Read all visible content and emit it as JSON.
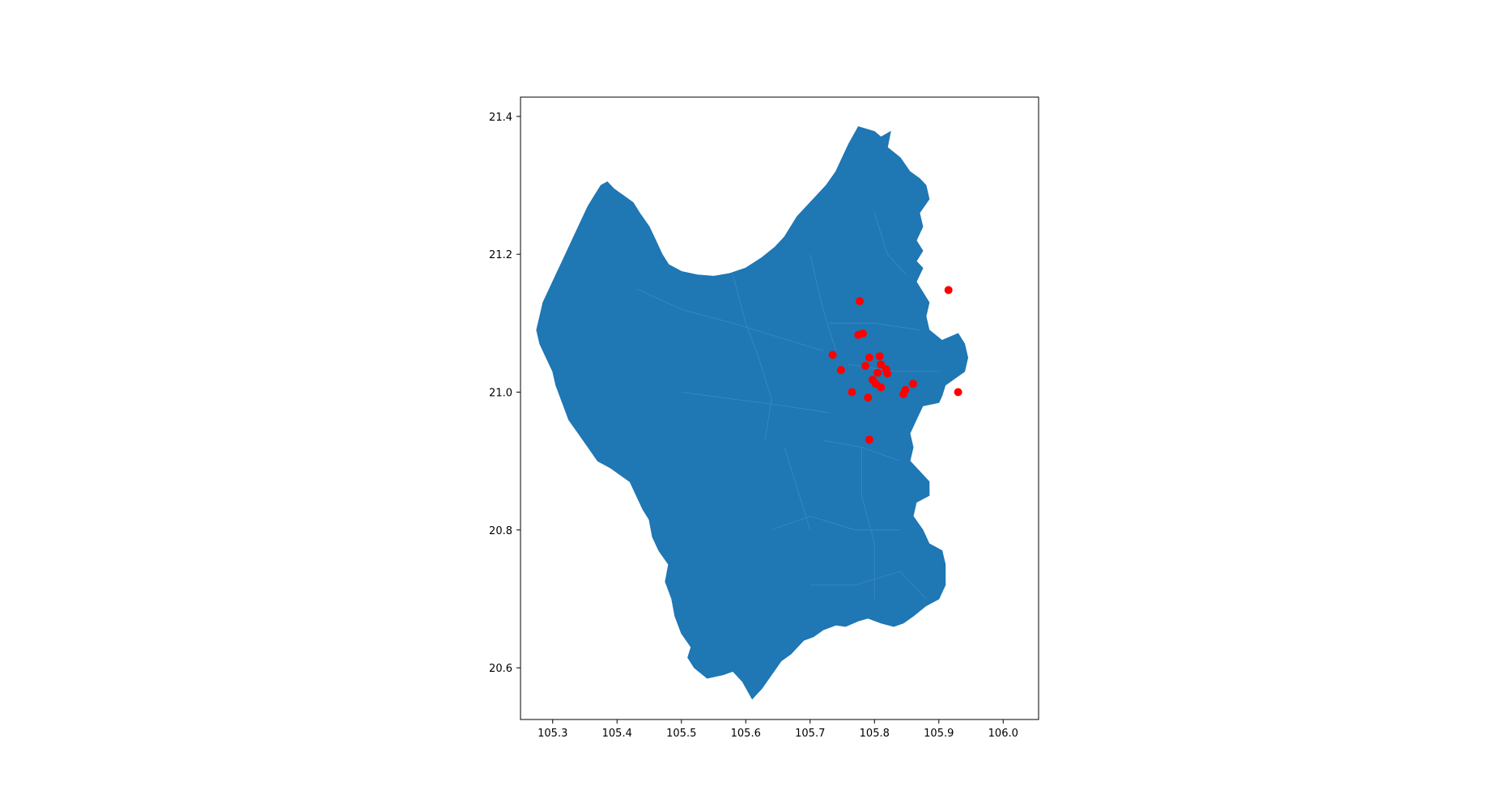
{
  "figure": {
    "title": "",
    "background": "#ffffff"
  },
  "chart_data": {
    "type": "scatter",
    "title": "",
    "xlabel": "",
    "ylabel": "",
    "xlim": [
      105.25,
      106.055
    ],
    "ylim": [
      20.525,
      21.428
    ],
    "grid": false,
    "legend": "none",
    "x_ticks": [
      105.3,
      105.4,
      105.5,
      105.6,
      105.7,
      105.8,
      105.9,
      106.0
    ],
    "x_tick_labels": [
      "105.3",
      "105.4",
      "105.5",
      "105.6",
      "105.7",
      "105.8",
      "105.9",
      "106.0"
    ],
    "y_ticks": [
      20.6,
      20.8,
      21.0,
      21.2,
      21.4
    ],
    "y_tick_labels": [
      "20.6",
      "20.8",
      "21.0",
      "21.2",
      "21.4"
    ],
    "region": {
      "fill_color": "#1f77b4",
      "boundary_color": "#3b8bc2",
      "outline": [
        [
          105.775,
          21.385
        ],
        [
          105.8,
          21.378
        ],
        [
          105.81,
          21.37
        ],
        [
          105.825,
          21.378
        ],
        [
          105.82,
          21.355
        ],
        [
          105.84,
          21.34
        ],
        [
          105.855,
          21.32
        ],
        [
          105.87,
          21.31
        ],
        [
          105.88,
          21.3
        ],
        [
          105.885,
          21.28
        ],
        [
          105.87,
          21.26
        ],
        [
          105.875,
          21.24
        ],
        [
          105.865,
          21.22
        ],
        [
          105.875,
          21.205
        ],
        [
          105.865,
          21.19
        ],
        [
          105.875,
          21.18
        ],
        [
          105.865,
          21.16
        ],
        [
          105.875,
          21.145
        ],
        [
          105.885,
          21.13
        ],
        [
          105.88,
          21.11
        ],
        [
          105.885,
          21.09
        ],
        [
          105.905,
          21.075
        ],
        [
          105.93,
          21.085
        ],
        [
          105.94,
          21.07
        ],
        [
          105.945,
          21.05
        ],
        [
          105.94,
          21.03
        ],
        [
          105.925,
          21.02
        ],
        [
          105.91,
          21.01
        ],
        [
          105.905,
          20.995
        ],
        [
          105.9,
          20.985
        ],
        [
          105.875,
          20.98
        ],
        [
          105.865,
          20.96
        ],
        [
          105.855,
          20.94
        ],
        [
          105.86,
          20.92
        ],
        [
          105.855,
          20.9
        ],
        [
          105.87,
          20.885
        ],
        [
          105.885,
          20.87
        ],
        [
          105.885,
          20.85
        ],
        [
          105.865,
          20.84
        ],
        [
          105.86,
          20.82
        ],
        [
          105.875,
          20.8
        ],
        [
          105.885,
          20.78
        ],
        [
          105.905,
          20.77
        ],
        [
          105.91,
          20.75
        ],
        [
          105.91,
          20.72
        ],
        [
          105.9,
          20.7
        ],
        [
          105.88,
          20.69
        ],
        [
          105.86,
          20.675
        ],
        [
          105.845,
          20.665
        ],
        [
          105.83,
          20.66
        ],
        [
          105.81,
          20.665
        ],
        [
          105.79,
          20.672
        ],
        [
          105.775,
          20.668
        ],
        [
          105.755,
          20.66
        ],
        [
          105.74,
          20.662
        ],
        [
          105.72,
          20.655
        ],
        [
          105.705,
          20.645
        ],
        [
          105.69,
          20.64
        ],
        [
          105.67,
          20.62
        ],
        [
          105.655,
          20.61
        ],
        [
          105.64,
          20.59
        ],
        [
          105.625,
          20.57
        ],
        [
          105.61,
          20.555
        ],
        [
          105.595,
          20.58
        ],
        [
          105.58,
          20.595
        ],
        [
          105.565,
          20.59
        ],
        [
          105.54,
          20.585
        ],
        [
          105.52,
          20.6
        ],
        [
          105.51,
          20.615
        ],
        [
          105.515,
          20.63
        ],
        [
          105.5,
          20.65
        ],
        [
          105.49,
          20.675
        ],
        [
          105.485,
          20.7
        ],
        [
          105.475,
          20.725
        ],
        [
          105.48,
          20.75
        ],
        [
          105.465,
          20.77
        ],
        [
          105.455,
          20.79
        ],
        [
          105.45,
          20.815
        ],
        [
          105.44,
          20.83
        ],
        [
          105.43,
          20.85
        ],
        [
          105.42,
          20.87
        ],
        [
          105.405,
          20.88
        ],
        [
          105.39,
          20.89
        ],
        [
          105.37,
          20.9
        ],
        [
          105.355,
          20.92
        ],
        [
          105.34,
          20.94
        ],
        [
          105.325,
          20.96
        ],
        [
          105.315,
          20.985
        ],
        [
          105.305,
          21.01
        ],
        [
          105.3,
          21.03
        ],
        [
          105.29,
          21.05
        ],
        [
          105.28,
          21.07
        ],
        [
          105.275,
          21.09
        ],
        [
          105.28,
          21.11
        ],
        [
          105.285,
          21.13
        ],
        [
          105.295,
          21.15
        ],
        [
          105.305,
          21.17
        ],
        [
          105.315,
          21.19
        ],
        [
          105.325,
          21.21
        ],
        [
          105.335,
          21.23
        ],
        [
          105.345,
          21.25
        ],
        [
          105.355,
          21.27
        ],
        [
          105.365,
          21.285
        ],
        [
          105.375,
          21.3
        ],
        [
          105.385,
          21.305
        ],
        [
          105.395,
          21.295
        ],
        [
          105.41,
          21.285
        ],
        [
          105.425,
          21.275
        ],
        [
          105.435,
          21.26
        ],
        [
          105.45,
          21.24
        ],
        [
          105.46,
          21.22
        ],
        [
          105.47,
          21.2
        ],
        [
          105.48,
          21.185
        ],
        [
          105.5,
          21.175
        ],
        [
          105.525,
          21.17
        ],
        [
          105.55,
          21.168
        ],
        [
          105.575,
          21.172
        ],
        [
          105.6,
          21.18
        ],
        [
          105.625,
          21.195
        ],
        [
          105.645,
          21.21
        ],
        [
          105.66,
          21.225
        ],
        [
          105.67,
          21.24
        ],
        [
          105.68,
          21.255
        ],
        [
          105.695,
          21.27
        ],
        [
          105.71,
          21.285
        ],
        [
          105.725,
          21.3
        ],
        [
          105.74,
          21.32
        ],
        [
          105.75,
          21.34
        ],
        [
          105.76,
          21.36
        ],
        [
          105.775,
          21.385
        ]
      ]
    },
    "series": [
      {
        "marker_color": "#ff0000",
        "points": [
          [
            105.777,
            21.132
          ],
          [
            105.915,
            21.148
          ],
          [
            105.775,
            21.083
          ],
          [
            105.782,
            21.085
          ],
          [
            105.735,
            21.054
          ],
          [
            105.808,
            21.052
          ],
          [
            105.792,
            21.05
          ],
          [
            105.786,
            21.038
          ],
          [
            105.748,
            21.032
          ],
          [
            105.81,
            21.04
          ],
          [
            105.818,
            21.033
          ],
          [
            105.805,
            21.028
          ],
          [
            105.82,
            21.027
          ],
          [
            105.797,
            21.018
          ],
          [
            105.802,
            21.012
          ],
          [
            105.81,
            21.007
          ],
          [
            105.86,
            21.012
          ],
          [
            105.848,
            21.003
          ],
          [
            105.845,
            20.997
          ],
          [
            105.765,
            21.0
          ],
          [
            105.79,
            20.992
          ],
          [
            105.93,
            21.0
          ],
          [
            105.792,
            20.931
          ]
        ]
      }
    ]
  }
}
